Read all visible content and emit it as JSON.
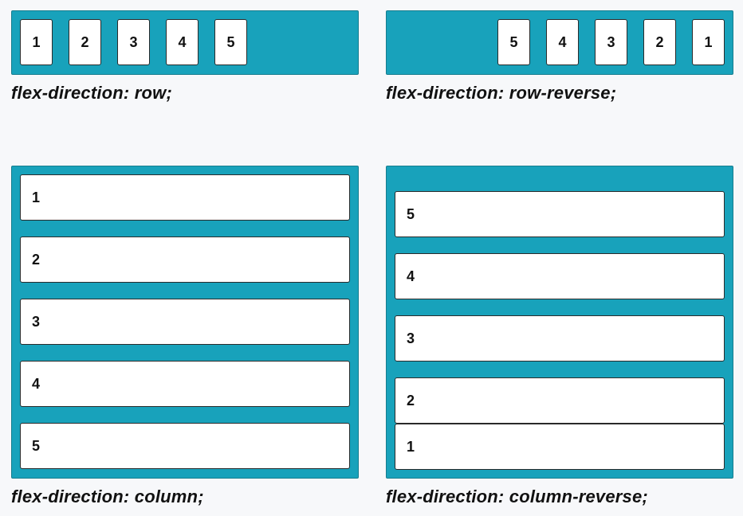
{
  "demos": {
    "row": {
      "caption": "flex-direction: row;",
      "items": [
        "1",
        "2",
        "3",
        "4",
        "5"
      ]
    },
    "row_reverse": {
      "caption": "flex-direction: row-reverse;",
      "items": [
        "1",
        "2",
        "3",
        "4",
        "5"
      ]
    },
    "column": {
      "caption": "flex-direction: column;",
      "items": [
        "1",
        "2",
        "3",
        "4",
        "5"
      ]
    },
    "column_reverse": {
      "caption": "flex-direction: column-reverse;",
      "items": [
        "1",
        "2",
        "3",
        "4",
        "5"
      ]
    }
  },
  "colors": {
    "container": "#18a2bb",
    "container_border": "#167d8e",
    "item": "#ffffff",
    "background": "#f7f8fa"
  }
}
